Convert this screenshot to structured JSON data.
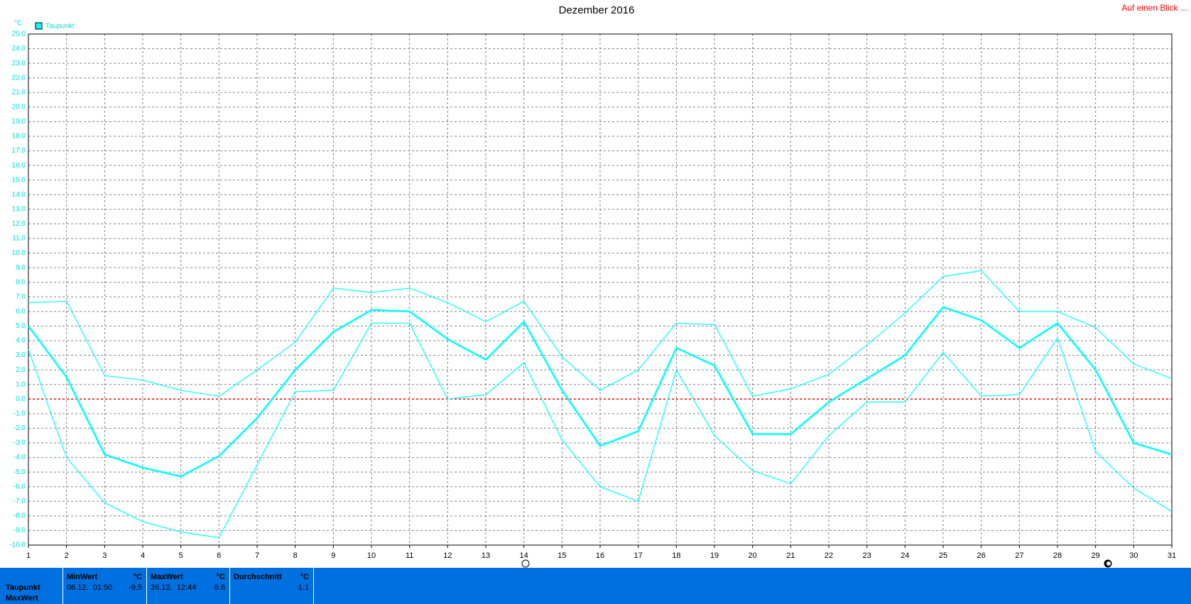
{
  "chart_data": {
    "type": "line",
    "title": "Dezember 2016",
    "y_label": "°C",
    "link": "Auf einen Blick ...",
    "x": [
      1,
      2,
      3,
      4,
      5,
      6,
      7,
      8,
      9,
      10,
      11,
      12,
      13,
      14,
      15,
      16,
      17,
      18,
      19,
      20,
      21,
      22,
      23,
      24,
      25,
      26,
      27,
      28,
      29,
      30,
      31
    ],
    "xlim": [
      1,
      31
    ],
    "xticks": [
      1,
      2,
      3,
      4,
      5,
      6,
      7,
      8,
      9,
      10,
      11,
      12,
      13,
      14,
      15,
      16,
      17,
      18,
      19,
      20,
      21,
      22,
      23,
      24,
      25,
      26,
      27,
      28,
      29,
      30,
      31
    ],
    "ylim": [
      -10,
      25
    ],
    "yticks": [
      {
        "value": -10,
        "label": "-10.0"
      },
      {
        "value": -9,
        "label": "-9.0"
      },
      {
        "value": -8,
        "label": "-8.0"
      },
      {
        "value": -7,
        "label": "-7.0"
      },
      {
        "value": -6,
        "label": "-6.0"
      },
      {
        "value": -5,
        "label": "-5.0"
      },
      {
        "value": -4,
        "label": "-4.0"
      },
      {
        "value": -3,
        "label": "-3.0"
      },
      {
        "value": -2,
        "label": "-2.0"
      },
      {
        "value": -1,
        "label": "-1.0"
      },
      {
        "value": 0,
        "label": "0.0"
      },
      {
        "value": 1,
        "label": "1.0"
      },
      {
        "value": 2,
        "label": "2.0"
      },
      {
        "value": 3,
        "label": "3.0"
      },
      {
        "value": 4,
        "label": "4.0"
      },
      {
        "value": 5,
        "label": "5.0"
      },
      {
        "value": 6,
        "label": "6.0"
      },
      {
        "value": 7,
        "label": "7.0"
      },
      {
        "value": 8,
        "label": "8.0"
      },
      {
        "value": 9,
        "label": "9.0"
      },
      {
        "value": 10,
        "label": "10.0"
      },
      {
        "value": 11,
        "label": "11.0"
      },
      {
        "value": 12,
        "label": "12.0"
      },
      {
        "value": 13,
        "label": "13.0"
      },
      {
        "value": 14,
        "label": "14.0"
      },
      {
        "value": 15,
        "label": "15.0"
      },
      {
        "value": 16,
        "label": "16.0"
      },
      {
        "value": 17,
        "label": "17.0"
      },
      {
        "value": 18,
        "label": "18.0"
      },
      {
        "value": 19,
        "label": "19.0"
      },
      {
        "value": 20,
        "label": "20.0"
      },
      {
        "value": 21,
        "label": "21.0"
      },
      {
        "value": 22,
        "label": "22.0"
      },
      {
        "value": 23,
        "label": "23.0"
      },
      {
        "value": 24,
        "label": "24.0"
      },
      {
        "value": 25,
        "label": "25.0"
      }
    ],
    "grid": true,
    "legend": "top-left",
    "reference_line": {
      "value": 0,
      "color": "#ff0000"
    },
    "series": [
      {
        "color": "#00ffff",
        "values": [
          6.6,
          6.7,
          1.6,
          1.3,
          0.6,
          0.2,
          2.0,
          3.9,
          7.6,
          7.3,
          7.6,
          6.6,
          5.3,
          6.7,
          2.9,
          0.6,
          2.0,
          5.2,
          5.1,
          0.2,
          0.7,
          1.7,
          3.7,
          5.9,
          8.4,
          8.8,
          6.0,
          6.0,
          4.9,
          2.4,
          1.4
        ]
      },
      {
        "name": "Taupunkt",
        "color": "#00ffff",
        "values": [
          5.0,
          1.5,
          -3.8,
          -4.7,
          -5.3,
          -3.9,
          -1.3,
          2.0,
          4.6,
          6.1,
          6.0,
          4.1,
          2.7,
          5.3,
          0.6,
          -3.2,
          -2.2,
          3.5,
          2.3,
          -2.4,
          -2.4,
          -0.2,
          1.4,
          3.0,
          6.3,
          5.4,
          3.5,
          5.2,
          2.0,
          -3.0,
          -3.8
        ]
      },
      {
        "color": "#00ffff",
        "values": [
          3.4,
          -4.0,
          -7.1,
          -8.4,
          -9.1,
          -9.5,
          -4.5,
          0.5,
          0.6,
          5.2,
          5.2,
          0.0,
          0.3,
          2.5,
          -2.8,
          -6.0,
          -7.0,
          2.0,
          -2.5,
          -4.9,
          -5.8,
          -2.5,
          -0.2,
          -0.2,
          3.2,
          0.2,
          0.3,
          4.2,
          -3.6,
          -6.1,
          -7.7
        ]
      }
    ]
  },
  "summary": {
    "rows": [
      "Taupunkt",
      "MaxWert"
    ],
    "columns": [
      {
        "header": "MinWert",
        "unit": "°C",
        "time": "06.12.  01:50",
        "value": -9.5
      },
      {
        "header": "MaxWert",
        "unit": "°C",
        "time": "26.12.  12:44",
        "value": 8.8
      },
      {
        "header": "Durchschnitt",
        "unit": "°C",
        "value": 1.1
      }
    ]
  }
}
